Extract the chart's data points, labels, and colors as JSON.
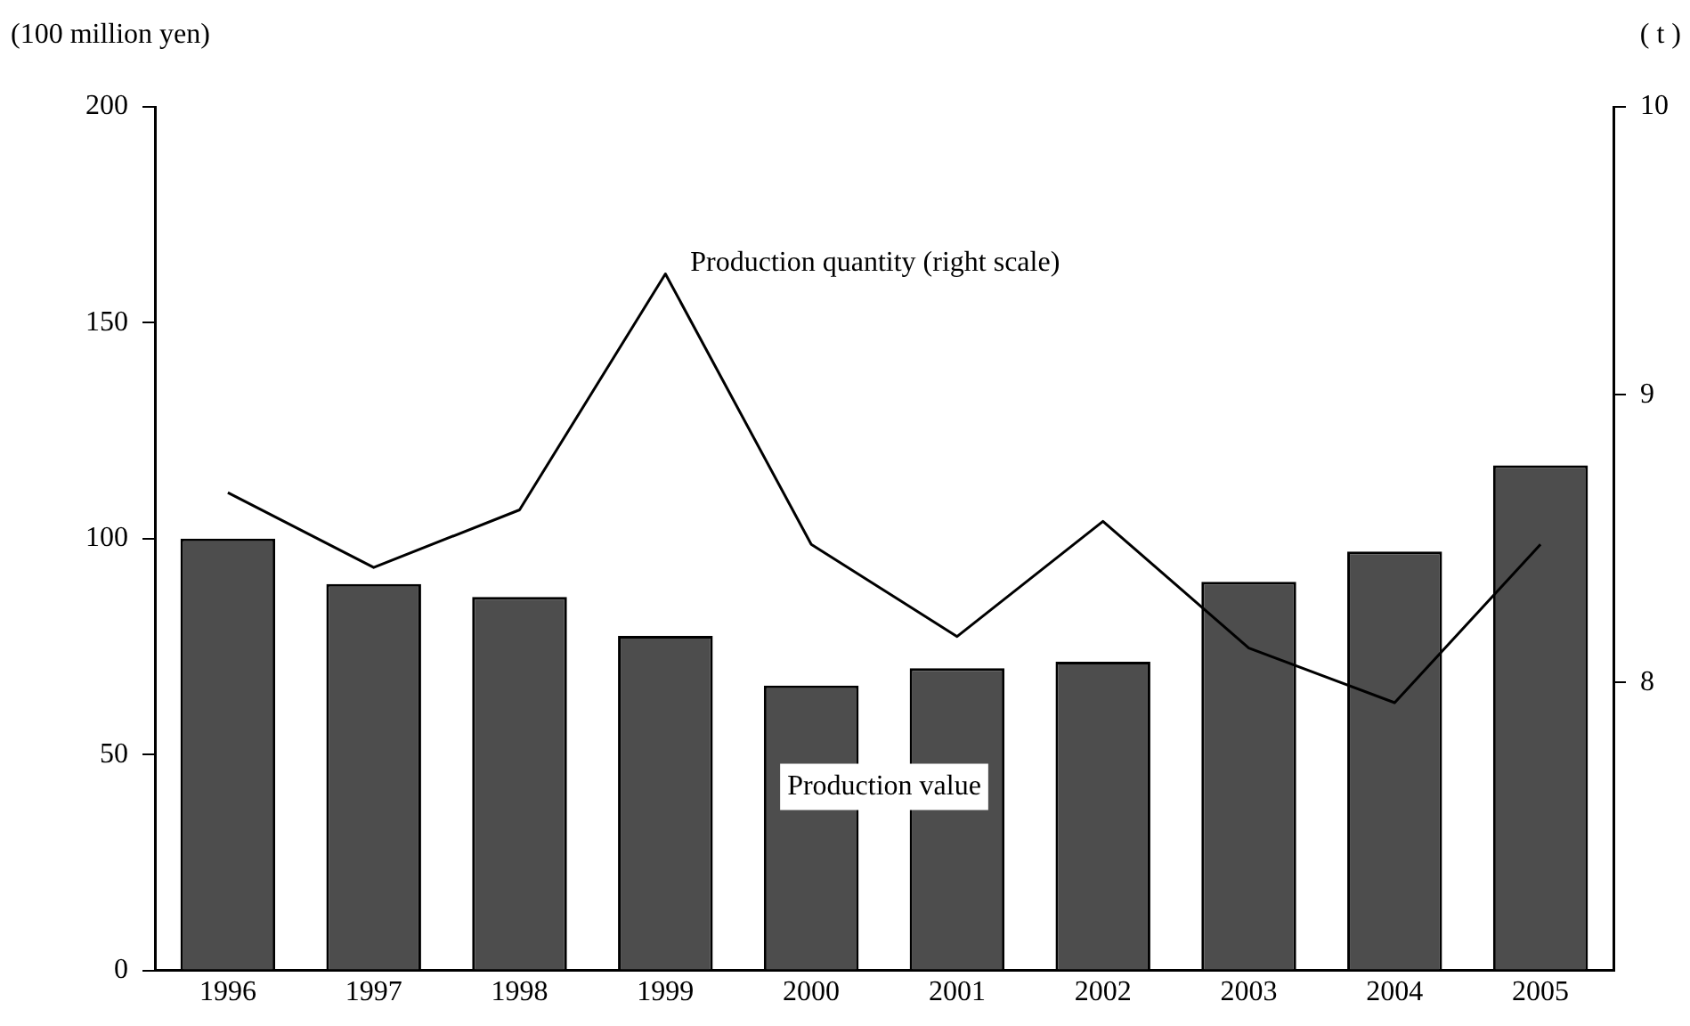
{
  "chart_data": {
    "type": "bar",
    "ylabel": "(100 million yen)",
    "y2label": "( t )",
    "categories": [
      "1996",
      "1997",
      "1998",
      "1999",
      "2000",
      "2001",
      "2002",
      "2003",
      "2004",
      "2005"
    ],
    "series": [
      {
        "name": "Production value",
        "color": "#4d4d4d",
        "values": [
          100,
          89.5,
          86.5,
          77.5,
          66,
          70,
          71.5,
          90,
          97,
          117
        ]
      },
      {
        "name": "Production quantity (right scale)",
        "type": "line",
        "axis": "y2",
        "color": "#000000",
        "values": [
          8.66,
          8.4,
          8.6,
          9.42,
          8.48,
          8.16,
          8.56,
          8.12,
          7.93,
          8.48
        ]
      }
    ],
    "ylim": [
      0,
      200
    ],
    "yticks": [
      0,
      50,
      100,
      150,
      200
    ],
    "y2lim": [
      7,
      10
    ],
    "y2ticks": [
      8,
      9,
      10
    ],
    "grid": false,
    "legend": false,
    "marker": "none",
    "line_style": "solid"
  }
}
